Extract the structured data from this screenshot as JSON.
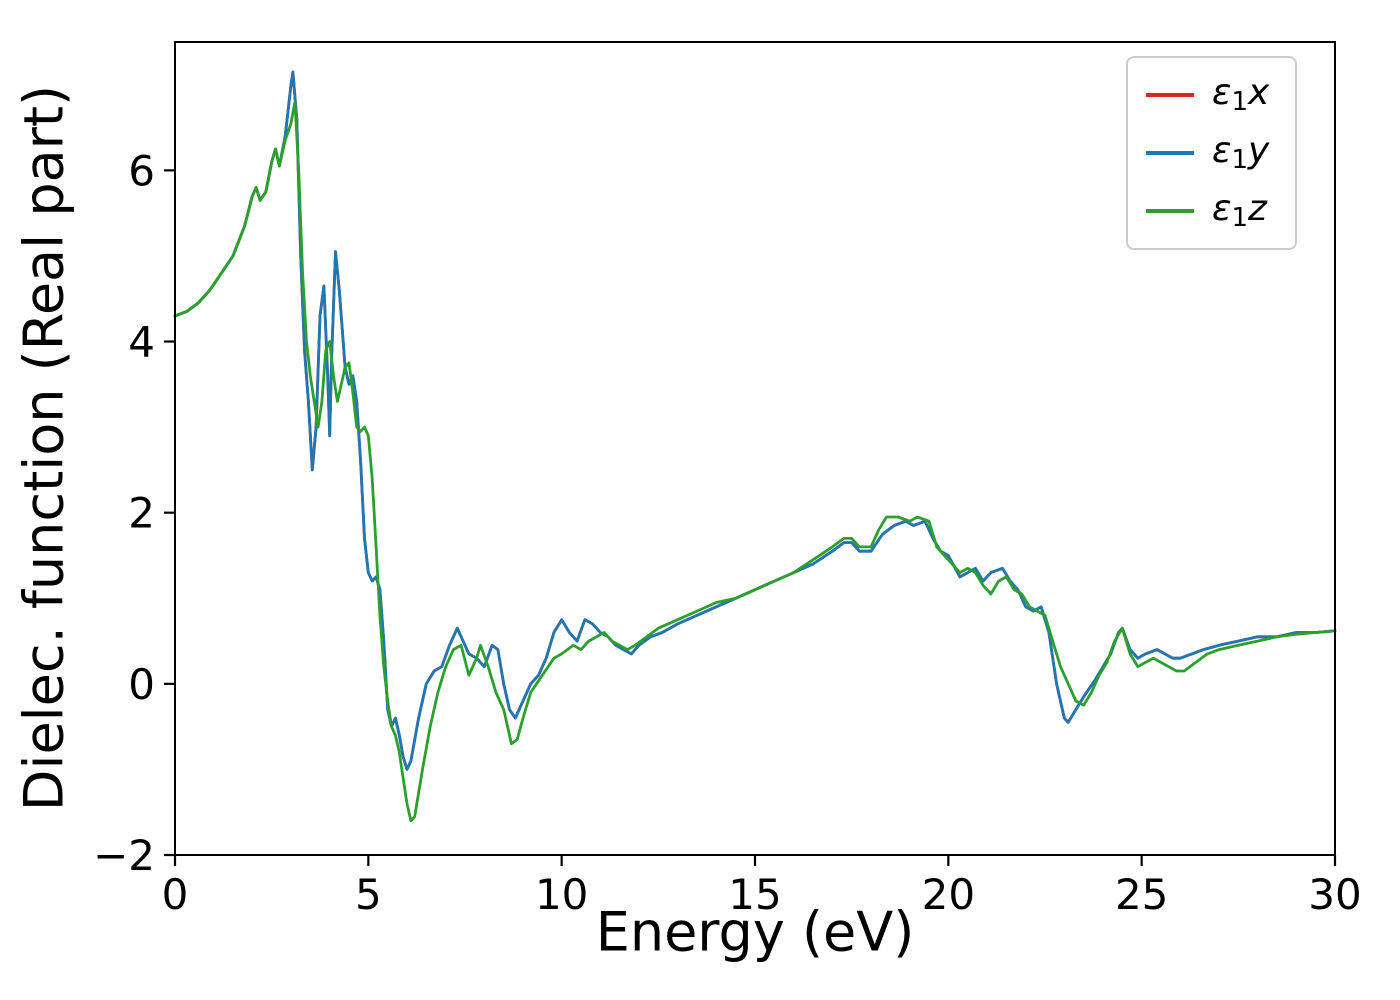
{
  "figure": {
    "background": "#ffffff"
  },
  "axes": {
    "xlabel": "Energy (eV)",
    "ylabel": "Dielec. function (Real part)"
  },
  "legend": {
    "entries": [
      {
        "eps": "ε",
        "sub": "1",
        "axis": "x",
        "color": "#d62728"
      },
      {
        "eps": "ε",
        "sub": "1",
        "axis": "y",
        "color": "#1f77b4"
      },
      {
        "eps": "ε",
        "sub": "1",
        "axis": "z",
        "color": "#2ca02c"
      }
    ]
  },
  "chart_data": {
    "type": "line",
    "title": "",
    "xlabel": "Energy (eV)",
    "ylabel": "Dielec. function (Real part)",
    "xlim": [
      0,
      30
    ],
    "ylim": [
      -2,
      7.5
    ],
    "xticks": [
      0,
      5,
      10,
      15,
      20,
      25,
      30
    ],
    "yticks": [
      -2,
      0,
      2,
      4,
      6
    ],
    "grid": false,
    "legend_position": "upper right",
    "series": [
      {
        "id": "e1x",
        "name": "ε1x",
        "color": "#d62728",
        "x": [
          0,
          0.3,
          0.6,
          0.9,
          1.2,
          1.5,
          1.8,
          2.0,
          2.1,
          2.2,
          2.35,
          2.5,
          2.6,
          2.7,
          2.85,
          3.0,
          3.05,
          3.15,
          3.25,
          3.35,
          3.45,
          3.55,
          3.65,
          3.75,
          3.85,
          3.95,
          4.0,
          4.05,
          4.15,
          4.25,
          4.4,
          4.5,
          4.6,
          4.7,
          4.8,
          4.9,
          5.0,
          5.1,
          5.2,
          5.3,
          5.4,
          5.5,
          5.6,
          5.7,
          5.8,
          5.9,
          6.0,
          6.1,
          6.3,
          6.5,
          6.7,
          6.9,
          7.1,
          7.3,
          7.45,
          7.6,
          7.8,
          8.0,
          8.2,
          8.35,
          8.5,
          8.65,
          8.8,
          9.0,
          9.2,
          9.4,
          9.6,
          9.8,
          10.0,
          10.2,
          10.4,
          10.6,
          10.8,
          11.0,
          11.2,
          11.4,
          11.6,
          11.8,
          12.0,
          12.3,
          12.6,
          13.0,
          13.5,
          14.0,
          14.5,
          15.0,
          15.5,
          16.0,
          16.5,
          17.0,
          17.3,
          17.5,
          17.7,
          18.0,
          18.3,
          18.6,
          18.9,
          19.1,
          19.4,
          19.6,
          19.8,
          20.0,
          20.3,
          20.5,
          20.7,
          20.9,
          21.1,
          21.4,
          21.6,
          21.8,
          22.0,
          22.2,
          22.4,
          22.6,
          22.8,
          23.0,
          23.1,
          23.3,
          23.5,
          23.8,
          24.0,
          24.2,
          24.4,
          24.5,
          24.7,
          24.9,
          25.1,
          25.4,
          25.6,
          25.8,
          26.0,
          26.3,
          26.6,
          27.0,
          27.5,
          28.0,
          28.5,
          29.0,
          29.5,
          30.0
        ],
        "y": [
          4.3,
          4.35,
          4.45,
          4.6,
          4.8,
          5.0,
          5.35,
          5.7,
          5.8,
          5.65,
          5.75,
          6.1,
          6.25,
          6.05,
          6.4,
          7.0,
          7.15,
          6.6,
          5.0,
          3.9,
          3.3,
          2.5,
          3.0,
          4.3,
          4.65,
          3.6,
          2.9,
          3.8,
          5.05,
          4.6,
          3.7,
          3.5,
          3.6,
          3.3,
          2.6,
          1.7,
          1.3,
          1.2,
          1.25,
          1.1,
          0.5,
          -0.3,
          -0.5,
          -0.4,
          -0.6,
          -0.85,
          -1.0,
          -0.9,
          -0.4,
          0.0,
          0.15,
          0.2,
          0.45,
          0.65,
          0.5,
          0.35,
          0.3,
          0.2,
          0.45,
          0.4,
          0.0,
          -0.3,
          -0.4,
          -0.2,
          0.0,
          0.1,
          0.3,
          0.6,
          0.75,
          0.6,
          0.5,
          0.75,
          0.7,
          0.6,
          0.55,
          0.45,
          0.4,
          0.35,
          0.45,
          0.55,
          0.6,
          0.7,
          0.8,
          0.9,
          1.0,
          1.1,
          1.2,
          1.3,
          1.4,
          1.55,
          1.65,
          1.65,
          1.55,
          1.55,
          1.75,
          1.85,
          1.9,
          1.85,
          1.9,
          1.7,
          1.55,
          1.5,
          1.25,
          1.3,
          1.35,
          1.2,
          1.3,
          1.35,
          1.2,
          1.1,
          0.9,
          0.85,
          0.9,
          0.6,
          0.0,
          -0.4,
          -0.45,
          -0.3,
          -0.15,
          0.05,
          0.2,
          0.35,
          0.6,
          0.65,
          0.4,
          0.3,
          0.35,
          0.4,
          0.35,
          0.3,
          0.3,
          0.35,
          0.4,
          0.45,
          0.5,
          0.55,
          0.55,
          0.6,
          0.6,
          0.62
        ]
      },
      {
        "id": "e1y",
        "name": "ε1y",
        "color": "#1f77b4",
        "x": [
          0,
          0.3,
          0.6,
          0.9,
          1.2,
          1.5,
          1.8,
          2.0,
          2.1,
          2.2,
          2.35,
          2.5,
          2.6,
          2.7,
          2.85,
          3.0,
          3.05,
          3.15,
          3.25,
          3.35,
          3.45,
          3.55,
          3.65,
          3.75,
          3.85,
          3.95,
          4.0,
          4.05,
          4.15,
          4.25,
          4.4,
          4.5,
          4.6,
          4.7,
          4.8,
          4.9,
          5.0,
          5.1,
          5.2,
          5.3,
          5.4,
          5.5,
          5.6,
          5.7,
          5.8,
          5.9,
          6.0,
          6.1,
          6.3,
          6.5,
          6.7,
          6.9,
          7.1,
          7.3,
          7.45,
          7.6,
          7.8,
          8.0,
          8.2,
          8.35,
          8.5,
          8.65,
          8.8,
          9.0,
          9.2,
          9.4,
          9.6,
          9.8,
          10.0,
          10.2,
          10.4,
          10.6,
          10.8,
          11.0,
          11.2,
          11.4,
          11.6,
          11.8,
          12.0,
          12.3,
          12.6,
          13.0,
          13.5,
          14.0,
          14.5,
          15.0,
          15.5,
          16.0,
          16.5,
          17.0,
          17.3,
          17.5,
          17.7,
          18.0,
          18.3,
          18.6,
          18.9,
          19.1,
          19.4,
          19.6,
          19.8,
          20.0,
          20.3,
          20.5,
          20.7,
          20.9,
          21.1,
          21.4,
          21.6,
          21.8,
          22.0,
          22.2,
          22.4,
          22.6,
          22.8,
          23.0,
          23.1,
          23.3,
          23.5,
          23.8,
          24.0,
          24.2,
          24.4,
          24.5,
          24.7,
          24.9,
          25.1,
          25.4,
          25.6,
          25.8,
          26.0,
          26.3,
          26.6,
          27.0,
          27.5,
          28.0,
          28.5,
          29.0,
          29.5,
          30.0
        ],
        "y": [
          4.3,
          4.35,
          4.45,
          4.6,
          4.8,
          5.0,
          5.35,
          5.7,
          5.8,
          5.65,
          5.75,
          6.1,
          6.25,
          6.05,
          6.4,
          7.0,
          7.15,
          6.6,
          5.0,
          3.9,
          3.3,
          2.5,
          3.0,
          4.3,
          4.65,
          3.6,
          2.9,
          3.8,
          5.05,
          4.6,
          3.7,
          3.5,
          3.6,
          3.3,
          2.6,
          1.7,
          1.3,
          1.2,
          1.25,
          1.1,
          0.5,
          -0.3,
          -0.5,
          -0.4,
          -0.6,
          -0.85,
          -1.0,
          -0.9,
          -0.4,
          0.0,
          0.15,
          0.2,
          0.45,
          0.65,
          0.5,
          0.35,
          0.3,
          0.2,
          0.45,
          0.4,
          0.0,
          -0.3,
          -0.4,
          -0.2,
          0.0,
          0.1,
          0.3,
          0.6,
          0.75,
          0.6,
          0.5,
          0.75,
          0.7,
          0.6,
          0.55,
          0.45,
          0.4,
          0.35,
          0.45,
          0.55,
          0.6,
          0.7,
          0.8,
          0.9,
          1.0,
          1.1,
          1.2,
          1.3,
          1.4,
          1.55,
          1.65,
          1.65,
          1.55,
          1.55,
          1.75,
          1.85,
          1.9,
          1.85,
          1.9,
          1.7,
          1.55,
          1.5,
          1.25,
          1.3,
          1.35,
          1.2,
          1.3,
          1.35,
          1.2,
          1.1,
          0.9,
          0.85,
          0.9,
          0.6,
          0.0,
          -0.4,
          -0.45,
          -0.3,
          -0.15,
          0.05,
          0.2,
          0.35,
          0.6,
          0.65,
          0.4,
          0.3,
          0.35,
          0.4,
          0.35,
          0.3,
          0.3,
          0.35,
          0.4,
          0.45,
          0.5,
          0.55,
          0.55,
          0.6,
          0.6,
          0.62
        ]
      },
      {
        "id": "e1z",
        "name": "ε1z",
        "color": "#2ca02c",
        "x": [
          0,
          0.3,
          0.6,
          0.9,
          1.2,
          1.5,
          1.8,
          2.0,
          2.1,
          2.2,
          2.35,
          2.5,
          2.6,
          2.7,
          2.85,
          3.0,
          3.1,
          3.2,
          3.3,
          3.4,
          3.5,
          3.6,
          3.7,
          3.8,
          3.9,
          4.0,
          4.1,
          4.2,
          4.3,
          4.4,
          4.5,
          4.6,
          4.7,
          4.8,
          4.9,
          5.0,
          5.1,
          5.2,
          5.3,
          5.4,
          5.5,
          5.6,
          5.7,
          5.8,
          5.9,
          6.0,
          6.1,
          6.2,
          6.4,
          6.6,
          6.8,
          7.0,
          7.2,
          7.4,
          7.6,
          7.8,
          7.9,
          8.1,
          8.3,
          8.5,
          8.7,
          8.85,
          9.0,
          9.2,
          9.5,
          9.8,
          10.0,
          10.3,
          10.5,
          10.7,
          10.9,
          11.1,
          11.3,
          11.5,
          11.7,
          11.9,
          12.2,
          12.5,
          13.0,
          13.5,
          14.0,
          14.5,
          15.0,
          15.5,
          16.0,
          16.5,
          17.0,
          17.3,
          17.5,
          17.7,
          18.0,
          18.2,
          18.4,
          18.7,
          19.0,
          19.2,
          19.5,
          19.7,
          19.9,
          20.1,
          20.3,
          20.5,
          20.7,
          20.9,
          21.1,
          21.3,
          21.5,
          21.7,
          21.9,
          22.1,
          22.3,
          22.5,
          22.7,
          22.9,
          23.1,
          23.3,
          23.5,
          23.7,
          23.9,
          24.1,
          24.3,
          24.5,
          24.7,
          24.9,
          25.1,
          25.3,
          25.5,
          25.7,
          25.9,
          26.1,
          26.4,
          26.7,
          27.0,
          27.5,
          28.0,
          28.5,
          29.0,
          29.5,
          30.0
        ],
        "y": [
          4.3,
          4.35,
          4.45,
          4.6,
          4.8,
          5.0,
          5.35,
          5.7,
          5.8,
          5.65,
          5.75,
          6.1,
          6.25,
          6.05,
          6.35,
          6.55,
          6.8,
          6.0,
          4.8,
          4.0,
          3.6,
          3.3,
          3.0,
          3.3,
          3.9,
          4.0,
          3.6,
          3.3,
          3.5,
          3.7,
          3.75,
          3.4,
          3.0,
          2.95,
          3.0,
          2.9,
          2.4,
          1.6,
          0.8,
          0.2,
          -0.2,
          -0.5,
          -0.6,
          -0.8,
          -1.1,
          -1.4,
          -1.6,
          -1.55,
          -1.0,
          -0.5,
          -0.1,
          0.2,
          0.4,
          0.45,
          0.1,
          0.3,
          0.45,
          0.2,
          -0.1,
          -0.3,
          -0.7,
          -0.65,
          -0.4,
          -0.1,
          0.1,
          0.3,
          0.35,
          0.45,
          0.4,
          0.5,
          0.55,
          0.6,
          0.5,
          0.45,
          0.4,
          0.45,
          0.55,
          0.65,
          0.75,
          0.85,
          0.95,
          1.0,
          1.1,
          1.2,
          1.3,
          1.45,
          1.6,
          1.7,
          1.7,
          1.6,
          1.6,
          1.8,
          1.95,
          1.95,
          1.9,
          1.95,
          1.9,
          1.6,
          1.5,
          1.4,
          1.3,
          1.35,
          1.3,
          1.15,
          1.05,
          1.2,
          1.25,
          1.1,
          1.05,
          0.9,
          0.85,
          0.8,
          0.5,
          0.2,
          0.0,
          -0.2,
          -0.25,
          -0.1,
          0.1,
          0.25,
          0.5,
          0.65,
          0.35,
          0.2,
          0.25,
          0.3,
          0.25,
          0.2,
          0.15,
          0.15,
          0.25,
          0.35,
          0.4,
          0.45,
          0.5,
          0.55,
          0.58,
          0.6,
          0.62
        ]
      }
    ]
  }
}
